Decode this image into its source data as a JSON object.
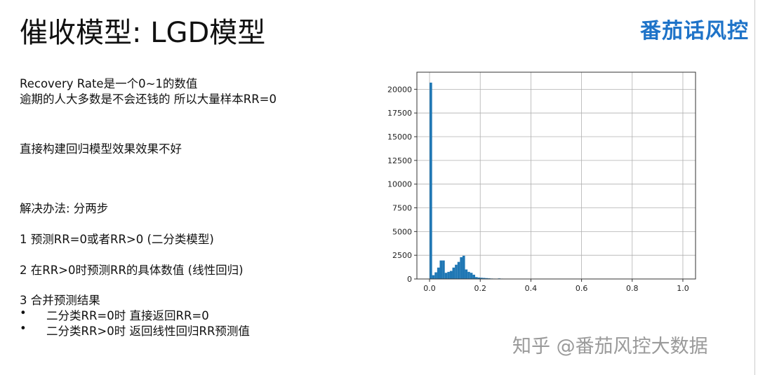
{
  "slide": {
    "title": "催收模型: LGD模型",
    "logo_text": "番茄话风控",
    "lines": [
      "Recovery Rate是一个0~1的数值",
      "逾期的人大多数是不会还钱的 所以大量样本RR=0",
      "直接构建回归模型效果效果不好",
      "解决办法: 分两步",
      "1 预测RR=0或者RR>0 (二分类模型)",
      "2 在RR>0时预测RR的具体数值 (线性回归)",
      "3 合并预测结果"
    ],
    "bullets": [
      "二分类RR=0时 直接返回RR=0",
      "二分类RR>0时 返回线性回归RR预测值"
    ],
    "bullet_symbol": "•",
    "watermark": "知乎 @番茄风控大数据"
  },
  "colors": {
    "bar": "#1f77b4",
    "logo": "#1e73c8",
    "grid": "#b0b0b0"
  },
  "chart_data": {
    "type": "bar",
    "subtype": "histogram",
    "title": "",
    "xlabel": "",
    "ylabel": "",
    "xlim": [
      -0.05,
      1.05
    ],
    "ylim": [
      0,
      21800
    ],
    "grid": true,
    "bin_width": 0.01,
    "bin_starts": [
      0.0,
      0.01,
      0.02,
      0.03,
      0.04,
      0.05,
      0.06,
      0.07,
      0.08,
      0.09,
      0.1,
      0.11,
      0.12,
      0.13,
      0.14,
      0.15,
      0.16,
      0.17,
      0.18,
      0.19,
      0.2,
      0.21,
      0.22,
      0.23,
      0.24,
      0.25,
      0.26,
      0.27,
      0.28
    ],
    "values": [
      20700,
      400,
      700,
      1200,
      1950,
      1950,
      650,
      750,
      850,
      1200,
      1500,
      1800,
      2300,
      2450,
      1000,
      750,
      650,
      450,
      200,
      150,
      130,
      110,
      90,
      70,
      50,
      40,
      30,
      60,
      40
    ],
    "xticks": [
      "0.0",
      "0.2",
      "0.4",
      "0.6",
      "0.8",
      "1.0"
    ],
    "xtick_values": [
      0,
      0.2,
      0.4,
      0.6,
      0.8,
      1.0
    ],
    "yticks": [
      "0",
      "2500",
      "5000",
      "7500",
      "10000",
      "12500",
      "15000",
      "17500",
      "20000"
    ],
    "ytick_values": [
      0,
      2500,
      5000,
      7500,
      10000,
      12500,
      15000,
      17500,
      20000
    ]
  }
}
